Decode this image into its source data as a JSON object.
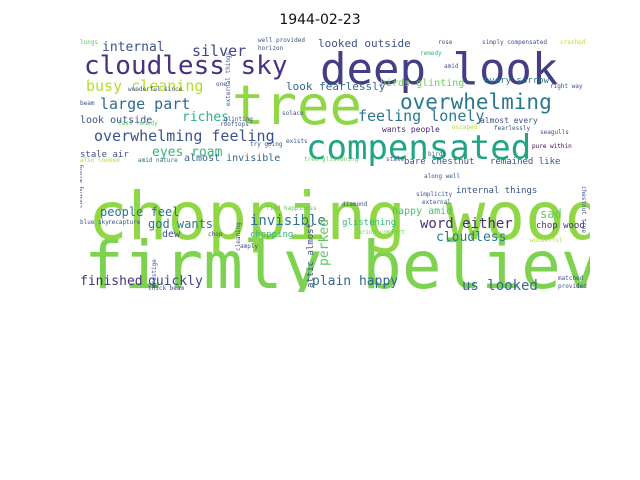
{
  "chart_data": {
    "type": "wordcloud",
    "title": "1944-02-23",
    "words": [
      {
        "text": "firmly believe",
        "color": "#7dd250"
      },
      {
        "text": "chopping wood",
        "color": "#8fd744"
      },
      {
        "text": "tree",
        "color": "#8fd744"
      },
      {
        "text": "deep look",
        "color": "#433e85"
      },
      {
        "text": "compensated",
        "color": "#21a585"
      },
      {
        "text": "cloudless sky",
        "color": "#46327e"
      },
      {
        "text": "overwhelming",
        "color": "#2a788e"
      },
      {
        "text": "overwhelming feeling",
        "color": "#3b528b"
      },
      {
        "text": "feeling lonely",
        "color": "#2a788e"
      },
      {
        "text": "busy cleaning",
        "color": "#b5de2b"
      },
      {
        "text": "large part",
        "color": "#31688e"
      },
      {
        "text": "silver",
        "color": "#414487"
      },
      {
        "text": "internal",
        "color": "#3b528b"
      },
      {
        "text": "eyes roam",
        "color": "#35b779"
      },
      {
        "text": "riches",
        "color": "#2db27d"
      },
      {
        "text": "look fearlessly",
        "color": "#31688e"
      },
      {
        "text": "looked outside",
        "color": "#3b528b"
      },
      {
        "text": "look outside",
        "color": "#3b528b"
      },
      {
        "text": "birds glinting",
        "color": "#6ece58"
      },
      {
        "text": "wants people",
        "color": "#482878"
      },
      {
        "text": "almost every",
        "color": "#3b528b"
      },
      {
        "text": "invisible",
        "color": "#2c728e"
      },
      {
        "text": "people feel",
        "color": "#2c728e"
      },
      {
        "text": "god wants",
        "color": "#2a788e"
      },
      {
        "text": "word either",
        "color": "#472f7d"
      },
      {
        "text": "sad",
        "color": "#5ec962"
      },
      {
        "text": "cloudless",
        "color": "#2a788e"
      },
      {
        "text": "happy amid",
        "color": "#4ac16d"
      },
      {
        "text": "chop wood",
        "color": "#46337e"
      },
      {
        "text": "remained like",
        "color": "#3b528b"
      },
      {
        "text": "bare chestnut",
        "color": "#3b528b"
      },
      {
        "text": "almost invisible",
        "color": "#31688e"
      },
      {
        "text": "stale air",
        "color": "#3b528b"
      },
      {
        "text": "amid nature",
        "color": "#2c728e"
      },
      {
        "text": "tree glistening",
        "color": "#6ece58"
      },
      {
        "text": "dew",
        "color": "#3b528b"
      },
      {
        "text": "chopping",
        "color": "#35b779"
      },
      {
        "text": "perked",
        "color": "#5ec962"
      },
      {
        "text": "plain happy",
        "color": "#31688e"
      },
      {
        "text": "us looked",
        "color": "#31688e"
      },
      {
        "text": "finished",
        "color": "#46327e"
      },
      {
        "text": "quickly",
        "color": "#414487"
      },
      {
        "text": "attic almost",
        "color": "#3b528b"
      },
      {
        "text": "glistening",
        "color": "#35b779"
      },
      {
        "text": "internal things",
        "color": "#3b528b"
      },
      {
        "text": "every sorrow",
        "color": "#2a788e"
      },
      {
        "text": "right way",
        "color": "#3b528b"
      },
      {
        "text": "simply compensated",
        "color": "#3b528b"
      },
      {
        "text": "crashed",
        "color": "#bddf26"
      },
      {
        "text": "remedy",
        "color": "#35b779"
      },
      {
        "text": "amid",
        "color": "#3b528b"
      },
      {
        "text": "fearlessly",
        "color": "#3b528b"
      },
      {
        "text": "seagulls",
        "color": "#3b528b"
      },
      {
        "text": "pure within",
        "color": "#440154"
      },
      {
        "text": "along well",
        "color": "#3b528b"
      },
      {
        "text": "birds",
        "color": "#31688e"
      },
      {
        "text": "simplicity",
        "color": "#3b528b"
      },
      {
        "text": "external",
        "color": "#3b528b"
      },
      {
        "text": "bring comfort",
        "color": "#6ece58"
      },
      {
        "text": "chestnut tree",
        "color": "#3b528b"
      },
      {
        "text": "stale",
        "color": "#3b528b"
      },
      {
        "text": "diamond",
        "color": "#3b528b"
      },
      {
        "text": "find happiness",
        "color": "#5ec962"
      },
      {
        "text": "thick beam",
        "color": "#3b528b"
      },
      {
        "text": "rooftops",
        "color": "#3b528b"
      },
      {
        "text": "cleaning",
        "color": "#3b528b"
      },
      {
        "text": "exists",
        "color": "#3b528b"
      },
      {
        "text": "solace",
        "color": "#3b528b"
      },
      {
        "text": "glinting",
        "color": "#3b528b"
      },
      {
        "text": "try going",
        "color": "#3b528b"
      },
      {
        "text": "chop",
        "color": "#3b528b"
      },
      {
        "text": "well provided",
        "color": "#3b528b"
      },
      {
        "text": "horizon",
        "color": "#3b528b"
      },
      {
        "text": "lungs",
        "color": "#5ec962"
      },
      {
        "text": "wonderful since",
        "color": "#3b528b"
      },
      {
        "text": "beam",
        "color": "#3b528b"
      },
      {
        "text": "last remedy",
        "color": "#5ec962"
      },
      {
        "text": "also looked",
        "color": "#b5de2b"
      },
      {
        "text": "blue sky",
        "color": "#3b528b"
      },
      {
        "text": "recapture",
        "color": "#3b528b"
      },
      {
        "text": "coming along",
        "color": "#3b528b"
      },
      {
        "text": "prestige",
        "color": "#3b528b"
      },
      {
        "text": "amply",
        "color": "#3b528b"
      },
      {
        "text": "matched",
        "color": "#3b528b"
      },
      {
        "text": "provided",
        "color": "#3b528b"
      },
      {
        "text": "wonderful",
        "color": "#b5de2b"
      },
      {
        "text": "escaped",
        "color": "#b5de2b"
      },
      {
        "text": "rose",
        "color": "#3b528b"
      },
      {
        "text": "external things",
        "color": "#3b528b"
      },
      {
        "text": "one",
        "color": "#3b528b"
      }
    ]
  }
}
